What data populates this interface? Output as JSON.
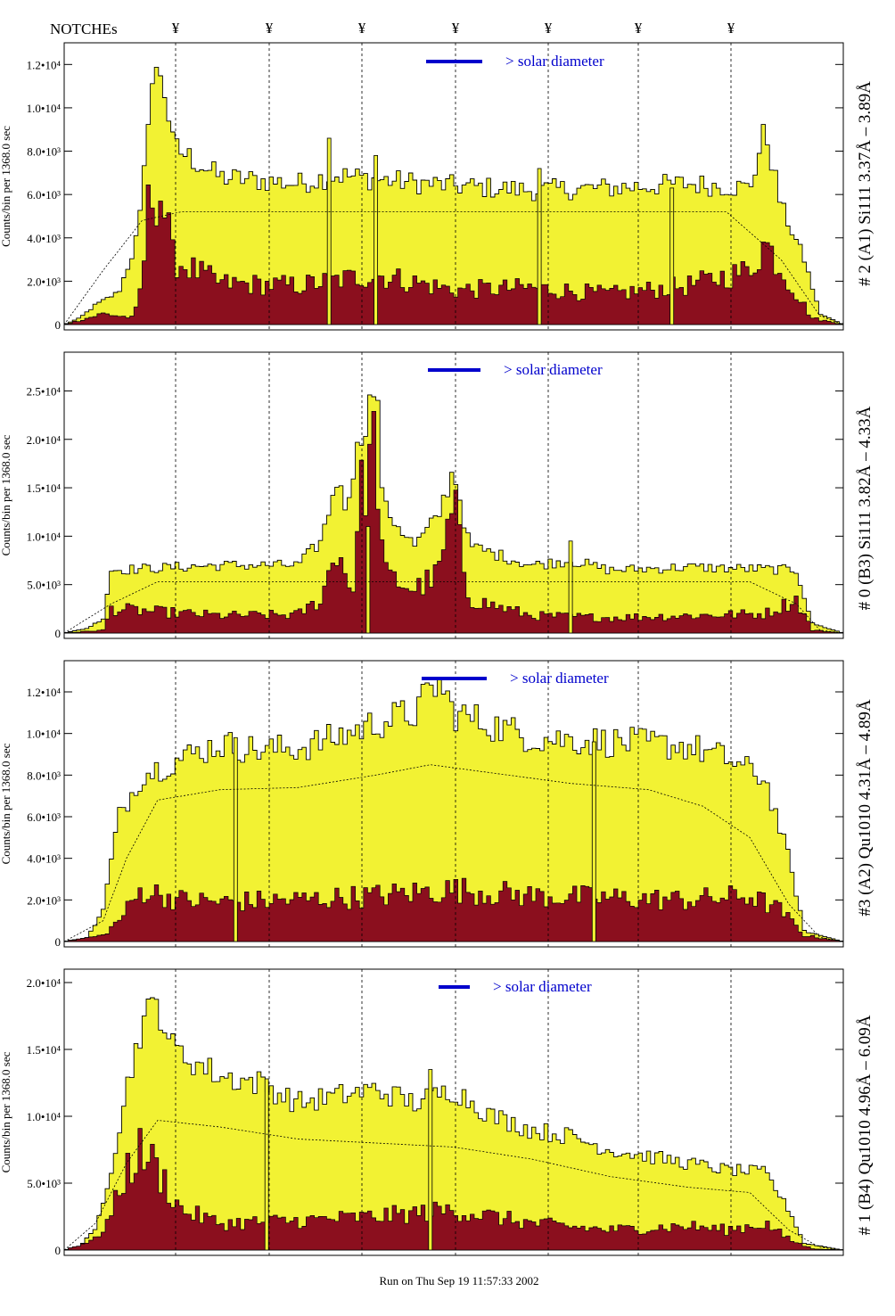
{
  "header": {
    "notches_label": "NOTCHEs",
    "notch_symbol": "¥",
    "notch_positions": [
      197,
      302,
      406,
      511,
      615,
      716,
      820
    ]
  },
  "footer": {
    "run_text": "Run on Thu Sep 19 11:57:33 2002"
  },
  "colors": {
    "total_fill": "#f2f233",
    "sub_fill": "#8b0f1e",
    "accent": "#0000cc",
    "line": "#000000"
  },
  "chart_data": [
    {
      "type": "area",
      "label": "# 2 (A1) Si111  3.37Å – 3.89Å",
      "ylabel": "Counts/bin per   1368.0 sec",
      "solar_label": "> solar diameter",
      "ylim": [
        0,
        13000
      ],
      "yticks": [
        {
          "v": 0,
          "t": "0"
        },
        {
          "v": 2000,
          "t": "2.0•10³"
        },
        {
          "v": 4000,
          "t": "4.0•10³"
        },
        {
          "v": 6000,
          "t": "6.0•10³"
        },
        {
          "v": 8000,
          "t": "8.0•10³"
        },
        {
          "v": 10000,
          "t": "1.0•10⁴"
        },
        {
          "v": 12000,
          "t": "1.2•10⁴"
        }
      ],
      "total": [
        [
          0,
          0
        ],
        [
          0.02,
          300
        ],
        [
          0.04,
          900
        ],
        [
          0.07,
          1500
        ],
        [
          0.09,
          3500
        ],
        [
          0.1,
          5500
        ],
        [
          0.11,
          11000
        ],
        [
          0.125,
          11800
        ],
        [
          0.14,
          8200
        ],
        [
          0.2,
          6800
        ],
        [
          0.3,
          6500
        ],
        [
          0.35,
          6900
        ],
        [
          0.4,
          6700
        ],
        [
          0.5,
          6400
        ],
        [
          0.6,
          6200
        ],
        [
          0.7,
          6300
        ],
        [
          0.8,
          6500
        ],
        [
          0.88,
          6300
        ],
        [
          0.9,
          9000
        ],
        [
          0.92,
          5500
        ],
        [
          0.95,
          3000
        ],
        [
          0.97,
          500
        ],
        [
          1,
          0
        ]
      ],
      "sub": [
        [
          0,
          0
        ],
        [
          0.02,
          200
        ],
        [
          0.05,
          500
        ],
        [
          0.09,
          300
        ],
        [
          0.1,
          2000
        ],
        [
          0.11,
          6200
        ],
        [
          0.125,
          6000
        ],
        [
          0.14,
          3000
        ],
        [
          0.2,
          1900
        ],
        [
          0.3,
          1800
        ],
        [
          0.4,
          2300
        ],
        [
          0.5,
          1600
        ],
        [
          0.6,
          1700
        ],
        [
          0.7,
          1400
        ],
        [
          0.8,
          1800
        ],
        [
          0.88,
          2500
        ],
        [
          0.9,
          3800
        ],
        [
          0.93,
          2000
        ],
        [
          0.96,
          300
        ],
        [
          1,
          0
        ]
      ],
      "model": [
        [
          0,
          0
        ],
        [
          0.05,
          2500
        ],
        [
          0.1,
          4800
        ],
        [
          0.15,
          5200
        ],
        [
          0.85,
          5200
        ],
        [
          0.92,
          3000
        ],
        [
          0.97,
          400
        ],
        [
          1,
          0
        ]
      ],
      "spikes": [
        [
          0.34,
          8600
        ],
        [
          0.4,
          7800
        ],
        [
          0.61,
          7200
        ],
        [
          0.78,
          6300
        ]
      ]
    },
    {
      "type": "area",
      "label": "# 0 (B3) Si111  3.82Å – 4.33Å",
      "ylabel": "Counts/bin per   1368.0 sec",
      "solar_label": "> solar diameter",
      "ylim": [
        0,
        29000
      ],
      "yticks": [
        {
          "v": 0,
          "t": "0"
        },
        {
          "v": 5000,
          "t": "5.0•10³"
        },
        {
          "v": 10000,
          "t": "1.0•10⁴"
        },
        {
          "v": 15000,
          "t": "1.5•10⁴"
        },
        {
          "v": 20000,
          "t": "2.0•10⁴"
        },
        {
          "v": 25000,
          "t": "2.5•10⁴"
        }
      ],
      "total": [
        [
          0,
          0
        ],
        [
          0.03,
          500
        ],
        [
          0.05,
          1500
        ],
        [
          0.06,
          6500
        ],
        [
          0.2,
          7000
        ],
        [
          0.3,
          7000
        ],
        [
          0.33,
          9500
        ],
        [
          0.35,
          16000
        ],
        [
          0.36,
          13000
        ],
        [
          0.38,
          20000
        ],
        [
          0.4,
          26000
        ],
        [
          0.41,
          13000
        ],
        [
          0.45,
          9000
        ],
        [
          0.48,
          12000
        ],
        [
          0.5,
          17000
        ],
        [
          0.52,
          9000
        ],
        [
          0.6,
          7000
        ],
        [
          0.65,
          7500
        ],
        [
          0.7,
          6500
        ],
        [
          0.8,
          6800
        ],
        [
          0.9,
          6600
        ],
        [
          0.94,
          6500
        ],
        [
          0.96,
          1000
        ],
        [
          1,
          0
        ]
      ],
      "sub": [
        [
          0,
          0
        ],
        [
          0.05,
          300
        ],
        [
          0.06,
          2500
        ],
        [
          0.2,
          1800
        ],
        [
          0.3,
          1900
        ],
        [
          0.33,
          3500
        ],
        [
          0.35,
          9000
        ],
        [
          0.37,
          4000
        ],
        [
          0.38,
          14000
        ],
        [
          0.4,
          20000
        ],
        [
          0.41,
          6000
        ],
        [
          0.45,
          4500
        ],
        [
          0.48,
          6000
        ],
        [
          0.5,
          13000
        ],
        [
          0.52,
          3500
        ],
        [
          0.6,
          1800
        ],
        [
          0.7,
          1600
        ],
        [
          0.8,
          1800
        ],
        [
          0.9,
          2000
        ],
        [
          0.94,
          3500
        ],
        [
          0.96,
          300
        ],
        [
          1,
          0
        ]
      ],
      "model": [
        [
          0,
          0
        ],
        [
          0.06,
          3000
        ],
        [
          0.12,
          5300
        ],
        [
          0.88,
          5300
        ],
        [
          0.94,
          3000
        ],
        [
          0.97,
          300
        ],
        [
          1,
          0
        ]
      ],
      "spikes": [
        [
          0.65,
          9500
        ],
        [
          0.39,
          11000
        ]
      ]
    },
    {
      "type": "area",
      "label": "#3 (A2) Qu1010  4.31Å – 4.89Å",
      "ylabel": "Counts/bin per   1368.0 sec",
      "solar_label": "> solar diameter",
      "ylim": [
        0,
        13500
      ],
      "yticks": [
        {
          "v": 0,
          "t": "0"
        },
        {
          "v": 2000,
          "t": "2.0•10³"
        },
        {
          "v": 4000,
          "t": "4.0•10³"
        },
        {
          "v": 6000,
          "t": "6.0•10³"
        },
        {
          "v": 8000,
          "t": "8.0•10³"
        },
        {
          "v": 10000,
          "t": "1.0•10⁴"
        },
        {
          "v": 12000,
          "t": "1.2•10⁴"
        }
      ],
      "total": [
        [
          0,
          0
        ],
        [
          0.03,
          200
        ],
        [
          0.05,
          1500
        ],
        [
          0.07,
          6000
        ],
        [
          0.1,
          8000
        ],
        [
          0.15,
          8800
        ],
        [
          0.2,
          9500
        ],
        [
          0.25,
          9200
        ],
        [
          0.3,
          9300
        ],
        [
          0.35,
          9800
        ],
        [
          0.4,
          10500
        ],
        [
          0.45,
          11000
        ],
        [
          0.48,
          12500
        ],
        [
          0.5,
          11000
        ],
        [
          0.6,
          9800
        ],
        [
          0.7,
          9600
        ],
        [
          0.8,
          9400
        ],
        [
          0.85,
          8800
        ],
        [
          0.9,
          7800
        ],
        [
          0.93,
          4000
        ],
        [
          0.95,
          500
        ],
        [
          1,
          0
        ]
      ],
      "sub": [
        [
          0,
          0
        ],
        [
          0.05,
          300
        ],
        [
          0.07,
          1000
        ],
        [
          0.1,
          2500
        ],
        [
          0.15,
          2000
        ],
        [
          0.2,
          1900
        ],
        [
          0.3,
          2000
        ],
        [
          0.4,
          2200
        ],
        [
          0.5,
          2500
        ],
        [
          0.6,
          2200
        ],
        [
          0.7,
          2100
        ],
        [
          0.8,
          2000
        ],
        [
          0.88,
          2200
        ],
        [
          0.92,
          1500
        ],
        [
          0.95,
          300
        ],
        [
          1,
          0
        ]
      ],
      "model": [
        [
          0,
          0
        ],
        [
          0.05,
          1000
        ],
        [
          0.08,
          4000
        ],
        [
          0.12,
          6800
        ],
        [
          0.2,
          7300
        ],
        [
          0.3,
          7400
        ],
        [
          0.4,
          8000
        ],
        [
          0.47,
          8500
        ],
        [
          0.55,
          8100
        ],
        [
          0.65,
          7600
        ],
        [
          0.75,
          7300
        ],
        [
          0.82,
          6500
        ],
        [
          0.88,
          5000
        ],
        [
          0.93,
          1800
        ],
        [
          0.97,
          200
        ],
        [
          1,
          0
        ]
      ],
      "spikes": [
        [
          0.22,
          9800
        ],
        [
          0.68,
          9600
        ]
      ]
    },
    {
      "type": "area",
      "label": "# 1 (B4) Qu1010 4.96Å – 6.09Å",
      "ylabel": "Counts/bin per   1368.0 sec",
      "solar_label": "> solar diameter",
      "ylim": [
        0,
        21000
      ],
      "yticks": [
        {
          "v": 0,
          "t": "0"
        },
        {
          "v": 5000,
          "t": "5.0•10³"
        },
        {
          "v": 10000,
          "t": "1.0•10⁴"
        },
        {
          "v": 15000,
          "t": "1.5•10⁴"
        },
        {
          "v": 20000,
          "t": "2.0•10⁴"
        }
      ],
      "total": [
        [
          0,
          0
        ],
        [
          0.02,
          300
        ],
        [
          0.04,
          1500
        ],
        [
          0.06,
          6000
        ],
        [
          0.08,
          12000
        ],
        [
          0.1,
          17000
        ],
        [
          0.12,
          18500
        ],
        [
          0.14,
          15000
        ],
        [
          0.2,
          13000
        ],
        [
          0.25,
          12500
        ],
        [
          0.3,
          11000
        ],
        [
          0.35,
          11500
        ],
        [
          0.4,
          12000
        ],
        [
          0.45,
          11000
        ],
        [
          0.5,
          12000
        ],
        [
          0.55,
          10000
        ],
        [
          0.6,
          9000
        ],
        [
          0.65,
          8500
        ],
        [
          0.7,
          7500
        ],
        [
          0.75,
          7000
        ],
        [
          0.8,
          6500
        ],
        [
          0.85,
          6000
        ],
        [
          0.9,
          5800
        ],
        [
          0.93,
          3000
        ],
        [
          0.95,
          500
        ],
        [
          1,
          0
        ]
      ],
      "sub": [
        [
          0,
          0
        ],
        [
          0.04,
          800
        ],
        [
          0.06,
          2500
        ],
        [
          0.08,
          6000
        ],
        [
          0.1,
          7500
        ],
        [
          0.12,
          6000
        ],
        [
          0.15,
          3000
        ],
        [
          0.2,
          2000
        ],
        [
          0.3,
          2200
        ],
        [
          0.4,
          2500
        ],
        [
          0.5,
          3000
        ],
        [
          0.6,
          2000
        ],
        [
          0.7,
          1500
        ],
        [
          0.8,
          1800
        ],
        [
          0.85,
          1500
        ],
        [
          0.9,
          2000
        ],
        [
          0.93,
          800
        ],
        [
          0.96,
          100
        ],
        [
          1,
          0
        ]
      ],
      "model": [
        [
          0,
          0
        ],
        [
          0.04,
          2000
        ],
        [
          0.08,
          6500
        ],
        [
          0.12,
          9700
        ],
        [
          0.2,
          9200
        ],
        [
          0.3,
          8300
        ],
        [
          0.4,
          8000
        ],
        [
          0.5,
          7700
        ],
        [
          0.6,
          6800
        ],
        [
          0.7,
          5500
        ],
        [
          0.8,
          4700
        ],
        [
          0.88,
          4300
        ],
        [
          0.93,
          1500
        ],
        [
          0.97,
          200
        ],
        [
          1,
          0
        ]
      ],
      "spikes": [
        [
          0.26,
          12800
        ],
        [
          0.47,
          13500
        ]
      ]
    }
  ]
}
